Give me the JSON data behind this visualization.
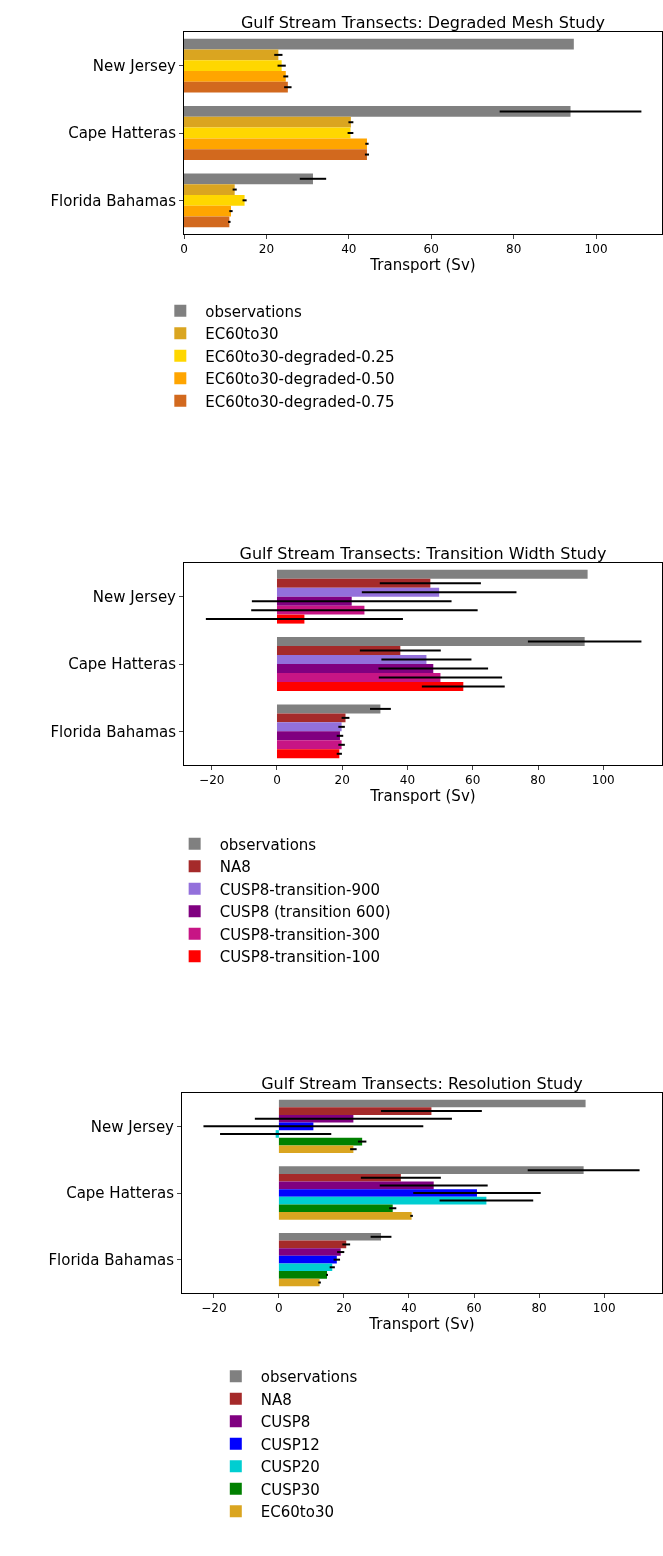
{
  "chart_data": [
    {
      "type": "bar",
      "orientation": "horizontal",
      "title": "Gulf Stream Transects: Degraded Mesh Study",
      "xlabel": "Transport (Sv)",
      "categories": [
        "New Jersey",
        "Cape Hatteras",
        "Florida Bahamas"
      ],
      "xlim": [
        0,
        116
      ],
      "xticks": [
        0,
        20,
        40,
        60,
        80,
        100
      ],
      "grid": false,
      "legend": "bottom",
      "series": [
        {
          "name": "observations",
          "color": "#808080",
          "values": [
            94.6,
            93.8,
            31.3
          ],
          "errors": [
            null,
            17.2,
            3.2
          ]
        },
        {
          "name": "EC60to30",
          "color": "#daa520",
          "values": [
            22.9,
            40.5,
            12.3
          ],
          "errors": [
            1,
            0.6,
            0.5
          ]
        },
        {
          "name": "EC60to30-degraded-0.25",
          "color": "#ffd700",
          "values": [
            23.7,
            40.4,
            14.7
          ],
          "errors": [
            1,
            0.7,
            0.5
          ]
        },
        {
          "name": "EC60to30-degraded-0.50",
          "color": "#ffa500",
          "values": [
            24.7,
            44.4,
            11.4
          ],
          "errors": [
            0.6,
            0.4,
            0.4
          ]
        },
        {
          "name": "EC60to30-degraded-0.75",
          "color": "#d2691e",
          "values": [
            25.2,
            44.4,
            11.0
          ],
          "errors": [
            0.9,
            0.5,
            0.3
          ]
        }
      ]
    },
    {
      "type": "bar",
      "orientation": "horizontal",
      "title": "Gulf Stream Transects: Transition Width Study",
      "xlabel": "Transport (Sv)",
      "categories": [
        "New Jersey",
        "Cape Hatteras",
        "Florida Bahamas"
      ],
      "xlim": [
        -28.5,
        118
      ],
      "xticks": [
        -20,
        0,
        20,
        40,
        60,
        80,
        100
      ],
      "grid": false,
      "legend": "bottom",
      "series": [
        {
          "name": "observations",
          "color": "#808080",
          "values": [
            95.2,
            94.3,
            31.7
          ],
          "errors": [
            null,
            17.4,
            3.2
          ]
        },
        {
          "name": "NA8",
          "color": "#a52a2a",
          "values": [
            47.0,
            37.8,
            21.0
          ],
          "errors": [
            15.5,
            12.4,
            1.2
          ]
        },
        {
          "name": "CUSP8-transition-900",
          "color": "#9370db",
          "values": [
            49.7,
            45.8,
            19.8
          ],
          "errors": [
            23.7,
            13.8,
            1
          ]
        },
        {
          "name": "CUSP8 (transition 600)",
          "color": "#800080",
          "values": [
            22.9,
            47.9,
            19.3
          ],
          "errors": [
            30.6,
            16.8,
            1
          ]
        },
        {
          "name": "CUSP8-transition-300",
          "color": "#c71585",
          "values": [
            26.8,
            50.1,
            19.8
          ],
          "errors": [
            34.7,
            18.9,
            1
          ]
        },
        {
          "name": "CUSP8-transition-100",
          "color": "#ff0000",
          "values": [
            8.4,
            57.1,
            19.1
          ],
          "errors": [
            30.2,
            12.7,
            0.8
          ]
        }
      ]
    },
    {
      "type": "bar",
      "orientation": "horizontal",
      "title": "Gulf Stream Transects: Resolution Study",
      "xlabel": "Transport (Sv)",
      "categories": [
        "New Jersey",
        "Cape Hatteras",
        "Florida Bahamas"
      ],
      "xlim": [
        -29.8,
        117.8
      ],
      "xticks": [
        -20,
        0,
        20,
        40,
        60,
        80,
        100
      ],
      "grid": false,
      "legend": "bottom",
      "series": [
        {
          "name": "observations",
          "color": "#808080",
          "values": [
            94.3,
            93.7,
            31.4
          ],
          "errors": [
            null,
            17.2,
            3.2
          ]
        },
        {
          "name": "NA8",
          "color": "#a52a2a",
          "values": [
            46.9,
            37.5,
            20.7
          ],
          "errors": [
            15.5,
            12.3,
            1.2
          ]
        },
        {
          "name": "CUSP8",
          "color": "#800080",
          "values": [
            22.9,
            47.6,
            19.0
          ],
          "errors": [
            30.3,
            16.6,
            1.1
          ]
        },
        {
          "name": "CUSP12",
          "color": "#0000ff",
          "values": [
            10.6,
            60.9,
            17.8
          ],
          "errors": [
            33.8,
            19.6,
            1
          ]
        },
        {
          "name": "CUSP20",
          "color": "#00ced1",
          "values": [
            -1.0,
            63.8,
            16.4
          ],
          "errors": [
            17.1,
            14.4,
            0.8
          ]
        },
        {
          "name": "CUSP30",
          "color": "#008000",
          "values": [
            25.6,
            35.0,
            14.8
          ],
          "errors": [
            1.3,
            1.1,
            0.3
          ]
        },
        {
          "name": "EC60to30",
          "color": "#daa520",
          "values": [
            22.9,
            40.8,
            12.5
          ],
          "errors": [
            1,
            0.4,
            0.4
          ]
        }
      ]
    }
  ]
}
